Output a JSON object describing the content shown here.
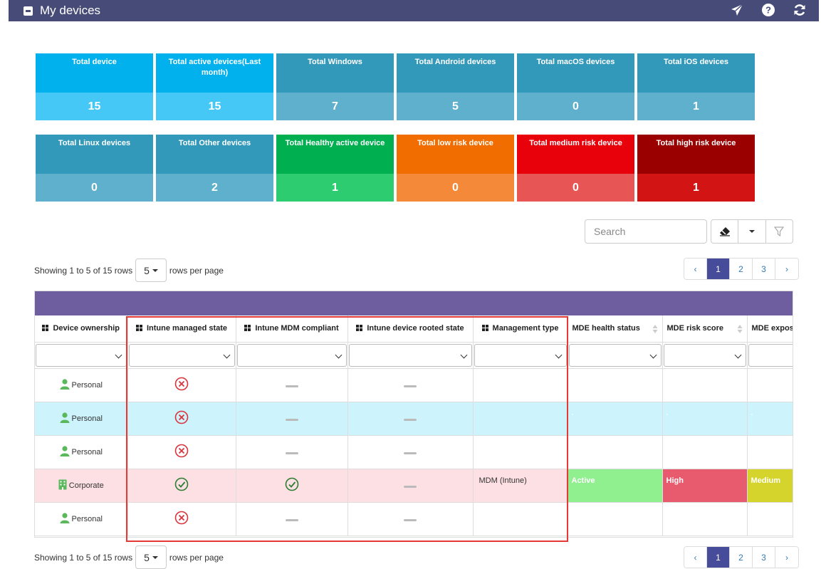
{
  "header": {
    "title": "My devices",
    "icons": [
      "paper-plane-icon",
      "help-icon",
      "refresh-icon"
    ]
  },
  "tiles_row1": [
    {
      "label": "Total device",
      "value": "15",
      "top": "#00b1ee",
      "bottom": "#45c8f5"
    },
    {
      "label": "Total active devices(Last month)",
      "value": "15",
      "top": "#00b1ee",
      "bottom": "#45c8f5"
    },
    {
      "label": "Total Windows",
      "value": "7",
      "top": "#3399bb",
      "bottom": "#5eb0cc"
    },
    {
      "label": "Total Android devices",
      "value": "5",
      "top": "#3399bb",
      "bottom": "#5eb0cc"
    },
    {
      "label": "Total macOS devices",
      "value": "0",
      "top": "#3399bb",
      "bottom": "#5eb0cc"
    },
    {
      "label": "Total iOS devices",
      "value": "1",
      "top": "#3399bb",
      "bottom": "#5eb0cc"
    }
  ],
  "tiles_row2": [
    {
      "label": "Total Linux devices",
      "value": "0",
      "top": "#3399bb",
      "bottom": "#5eb0cc"
    },
    {
      "label": "Total Other devices",
      "value": "2",
      "top": "#3399bb",
      "bottom": "#5eb0cc"
    },
    {
      "label": "Total Healthy active device",
      "value": "1",
      "top": "#00b050",
      "bottom": "#2ecc71"
    },
    {
      "label": "Total low risk device",
      "value": "0",
      "top": "#f26d00",
      "bottom": "#f5893a"
    },
    {
      "label": "Total medium risk device",
      "value": "0",
      "top": "#e8000b",
      "bottom": "#e85555"
    },
    {
      "label": "Total high risk device",
      "value": "1",
      "top": "#9a0000",
      "bottom": "#d21414"
    }
  ],
  "toolbar": {
    "search_placeholder": "Search"
  },
  "paging": {
    "showing": "Showing 1 to 5 of 15 rows",
    "page_size": "5",
    "rows_per_page": "rows per page",
    "prev": "‹",
    "next": "›",
    "pages": [
      "1",
      "2",
      "3"
    ],
    "active_page": "1"
  },
  "table": {
    "columns": [
      "Device ownership",
      "Intune managed state",
      "Intune MDM compliant",
      "Intune device rooted state",
      "Management type",
      "MDE health status",
      "MDE risk score",
      "MDE expos"
    ],
    "rows": [
      {
        "ownership": "Personal",
        "owner_icon": "person-icon",
        "managed": "no",
        "compliant": "none",
        "rooted": "none",
        "mgmt": "",
        "health": "",
        "risk": "",
        "exposure": "",
        "style": "white"
      },
      {
        "ownership": "Personal",
        "owner_icon": "person-icon",
        "managed": "no",
        "compliant": "none",
        "rooted": "none",
        "mgmt": "",
        "health": "-",
        "risk": "-",
        "exposure": "-",
        "style": "blue"
      },
      {
        "ownership": "Personal",
        "owner_icon": "person-icon",
        "managed": "no",
        "compliant": "none",
        "rooted": "none",
        "mgmt": "",
        "health": "",
        "risk": "",
        "exposure": "",
        "style": "white"
      },
      {
        "ownership": "Corporate",
        "owner_icon": "building-icon",
        "managed": "yes",
        "compliant": "yes",
        "rooted": "none",
        "mgmt": "MDM (Intune)",
        "health": "Active",
        "risk": "High",
        "exposure": "Medium",
        "style": "pink"
      },
      {
        "ownership": "Personal",
        "owner_icon": "person-icon",
        "managed": "no",
        "compliant": "none",
        "rooted": "none",
        "mgmt": "",
        "health": "",
        "risk": "",
        "exposure": "",
        "style": "white"
      }
    ],
    "badge_colors": {
      "Active": "#90f090",
      "High": "#e85a6e",
      "Medium": "#d4d42c"
    }
  }
}
